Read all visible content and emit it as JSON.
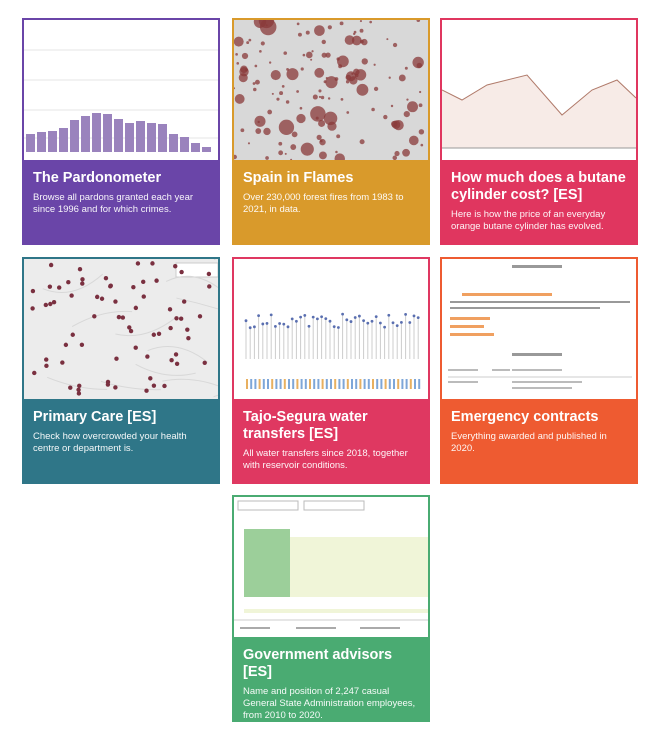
{
  "cards": [
    {
      "title": "The Pardonometer",
      "description": "Browse all pardons granted each year since 1996 and for which crimes."
    },
    {
      "title": "Spain in Flames",
      "description": "Over 230,000 forest fires from 1983 to 2021, in data."
    },
    {
      "title": "How much does a butane cylinder cost? [ES]",
      "description": "Here is how the price of an everyday orange butane cylinder has evolved."
    },
    {
      "title": "Primary Care [ES]",
      "description": "Check how overcrowded your health centre or department is."
    },
    {
      "title": "Tajo-Segura water transfers [ES]",
      "description": "All water transfers since 2018, together with reservoir conditions."
    },
    {
      "title": "Emergency contracts",
      "description": "Everything awarded and published in 2020."
    },
    {
      "title": "Government advisors [ES]",
      "description": "Name and position of 2,247 casual General State Administration employees, from 2010 to 2020."
    }
  ]
}
